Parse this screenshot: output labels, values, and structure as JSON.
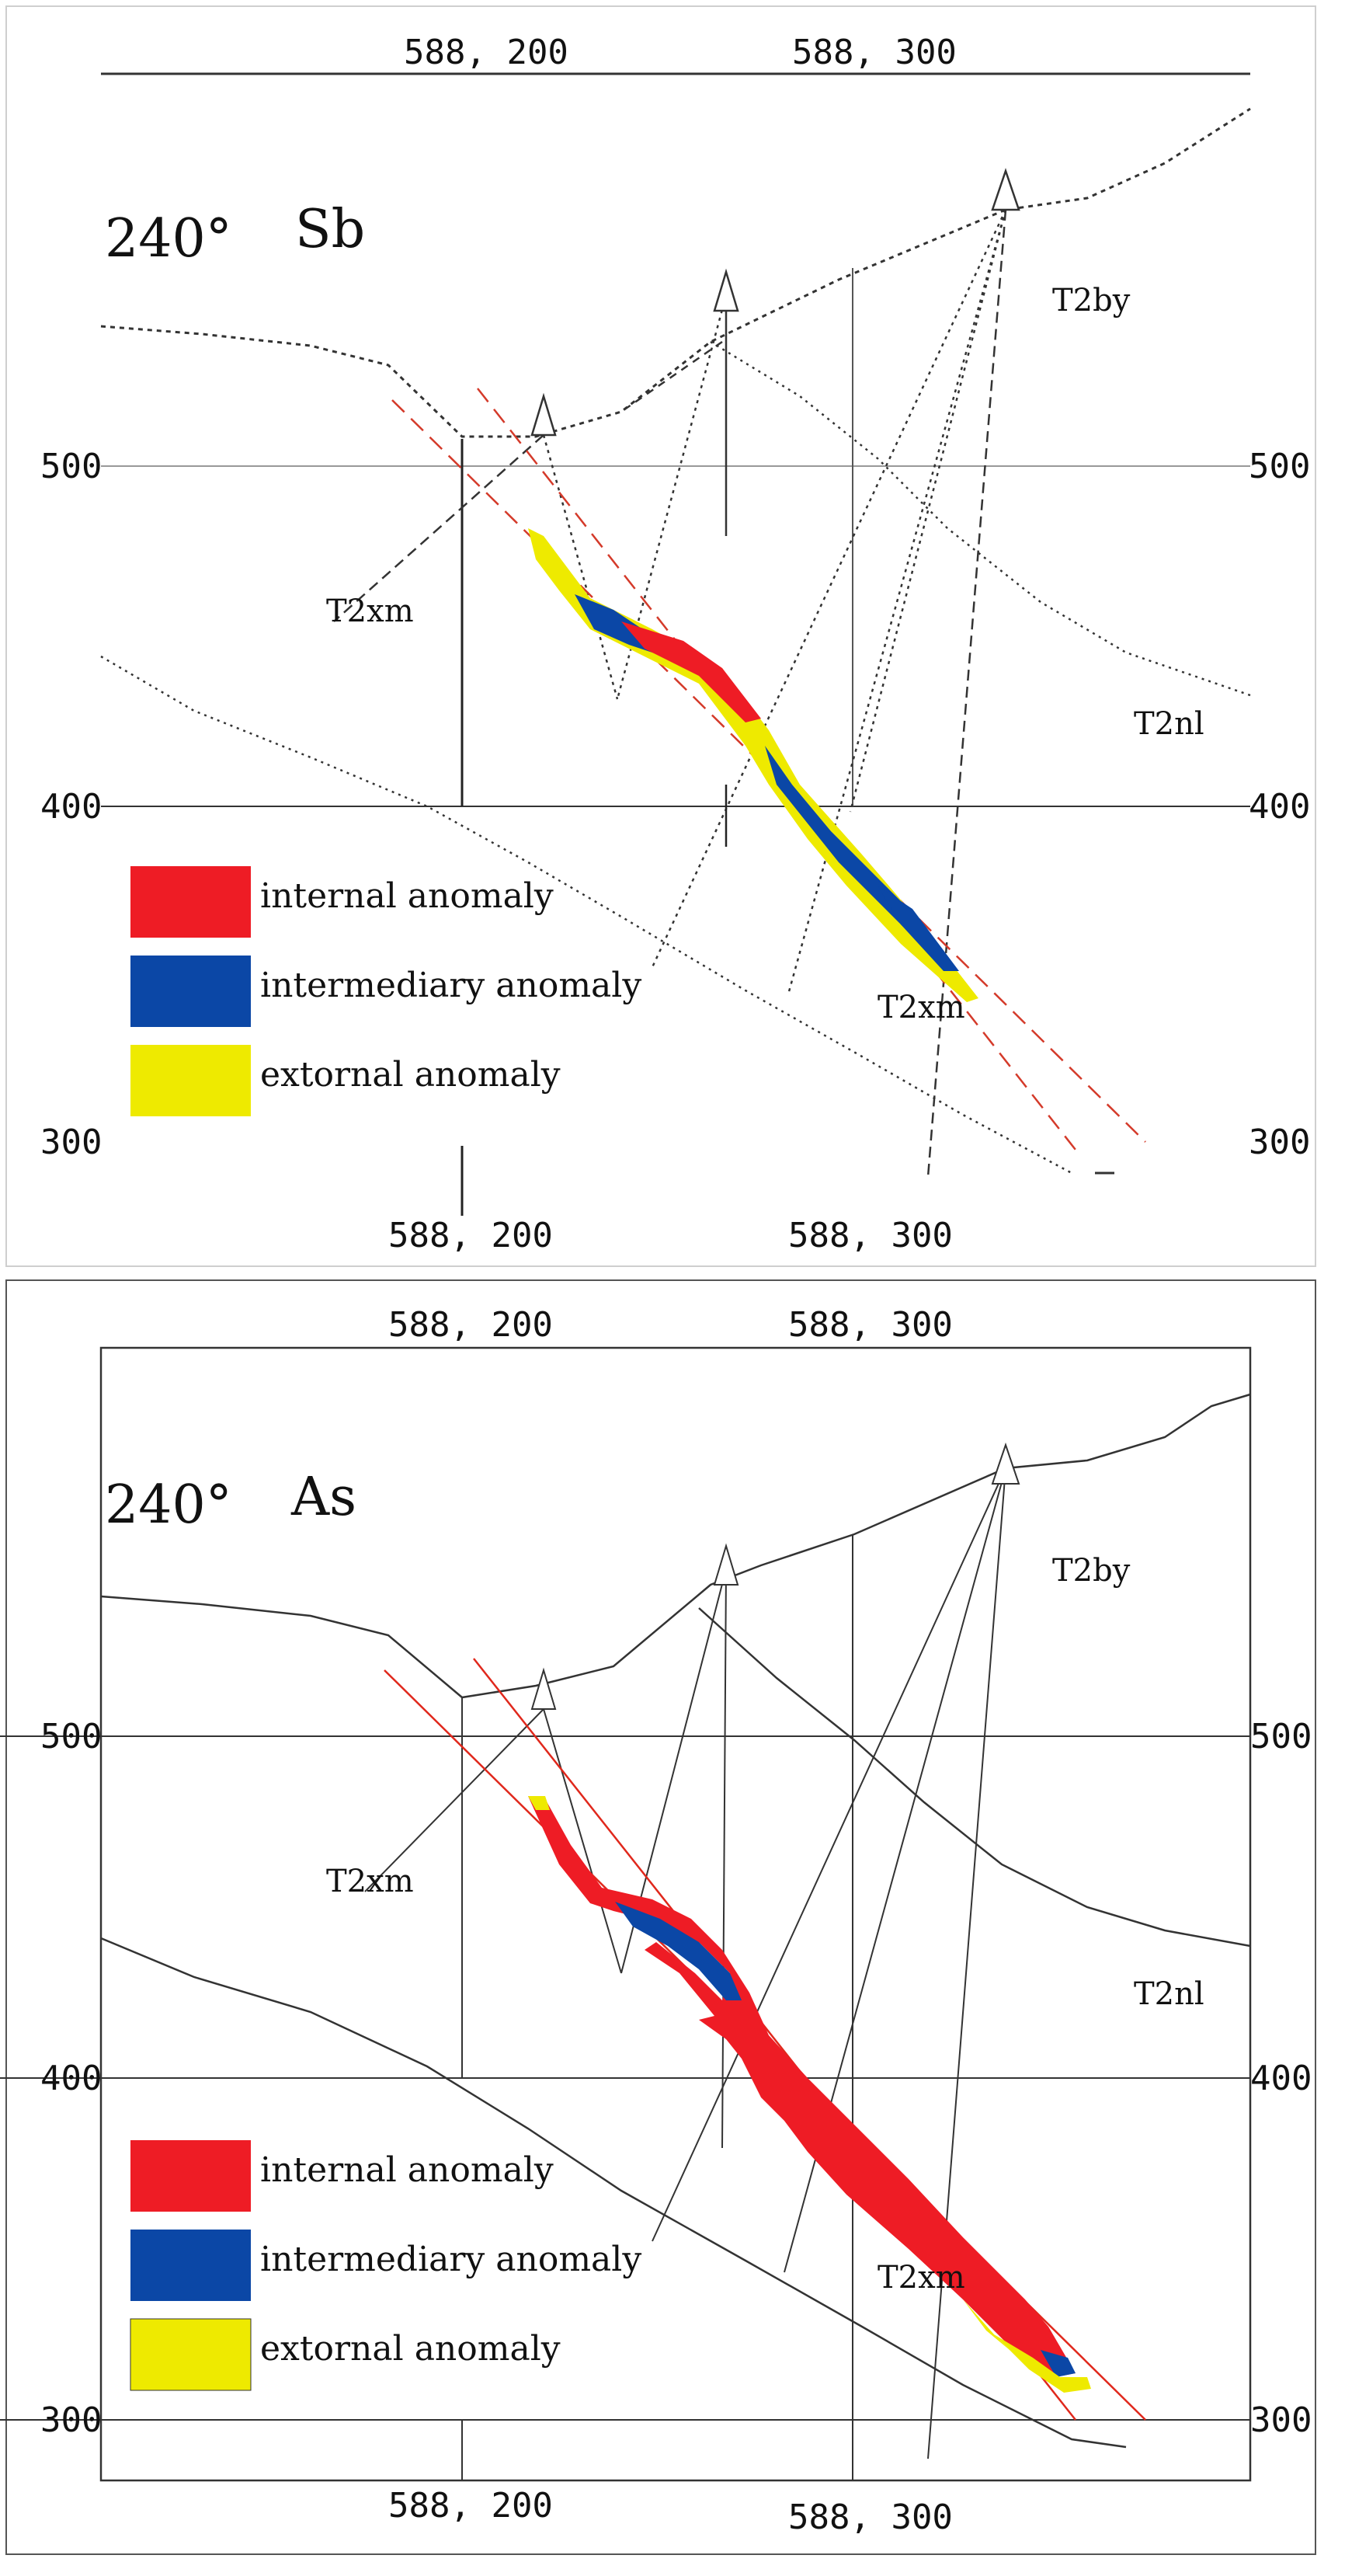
{
  "panels": [
    {
      "angle": "240°",
      "element": "Sb",
      "top_easting": [
        "588, 200",
        "588, 300"
      ],
      "bottom_easting": [
        "588, 200",
        "588, 300"
      ],
      "elev_left": [
        "500",
        "400",
        "300"
      ],
      "elev_right": [
        "500",
        "400",
        "300"
      ],
      "units": {
        "t2by": "T2by",
        "t2nl": "T2nl",
        "t2xm_a": "T2xm",
        "t2xm_b": "T2xm"
      },
      "legend": [
        "internal anomaly",
        "intermediary anomaly",
        "extornal anomaly"
      ]
    },
    {
      "angle": "240°",
      "element": "As",
      "top_easting": [
        "588, 200",
        "588, 300"
      ],
      "bottom_easting": [
        "588, 200",
        "588, 300"
      ],
      "elev_left": [
        "500",
        "400",
        "300"
      ],
      "elev_right": [
        "500",
        "400",
        "300"
      ],
      "units": {
        "t2by": "T2by",
        "t2nl": "T2nl",
        "t2xm_a": "T2xm",
        "t2xm_b": "T2xm"
      },
      "legend": [
        "internal anomaly",
        "intermediary anomaly",
        "extornal anomaly"
      ]
    }
  ],
  "colors": {
    "internal": "#ee1c25",
    "intermediary": "#0b47a6",
    "extornal": "#eeea00",
    "fault": "#d43a2a"
  }
}
